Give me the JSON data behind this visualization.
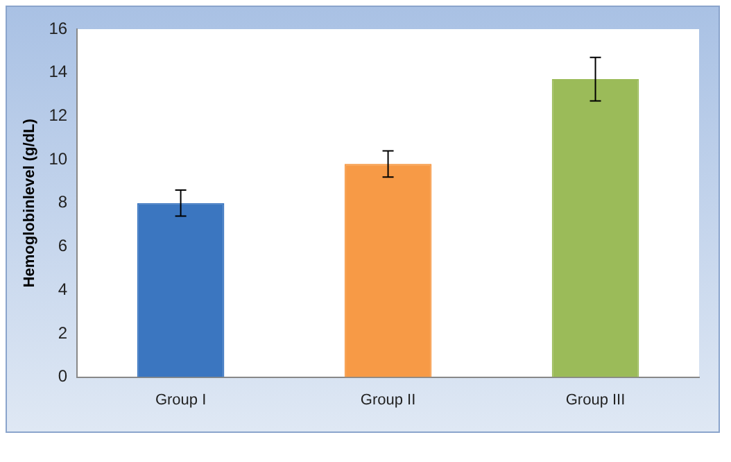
{
  "chart_data": {
    "type": "bar",
    "ylabel": "Hemoglobinlevel (g/dL)",
    "categories": [
      "Group I",
      "Group II",
      "Group III"
    ],
    "values": [
      8.0,
      9.8,
      13.7
    ],
    "errors": [
      0.6,
      0.6,
      1.0
    ],
    "colors": [
      "#3b76c0",
      "#f79a46",
      "#9bbb59"
    ],
    "ylim": [
      0,
      16
    ],
    "yticks": [
      0,
      2,
      4,
      6,
      8,
      10,
      12,
      14,
      16
    ],
    "grid": false,
    "legend": false
  }
}
